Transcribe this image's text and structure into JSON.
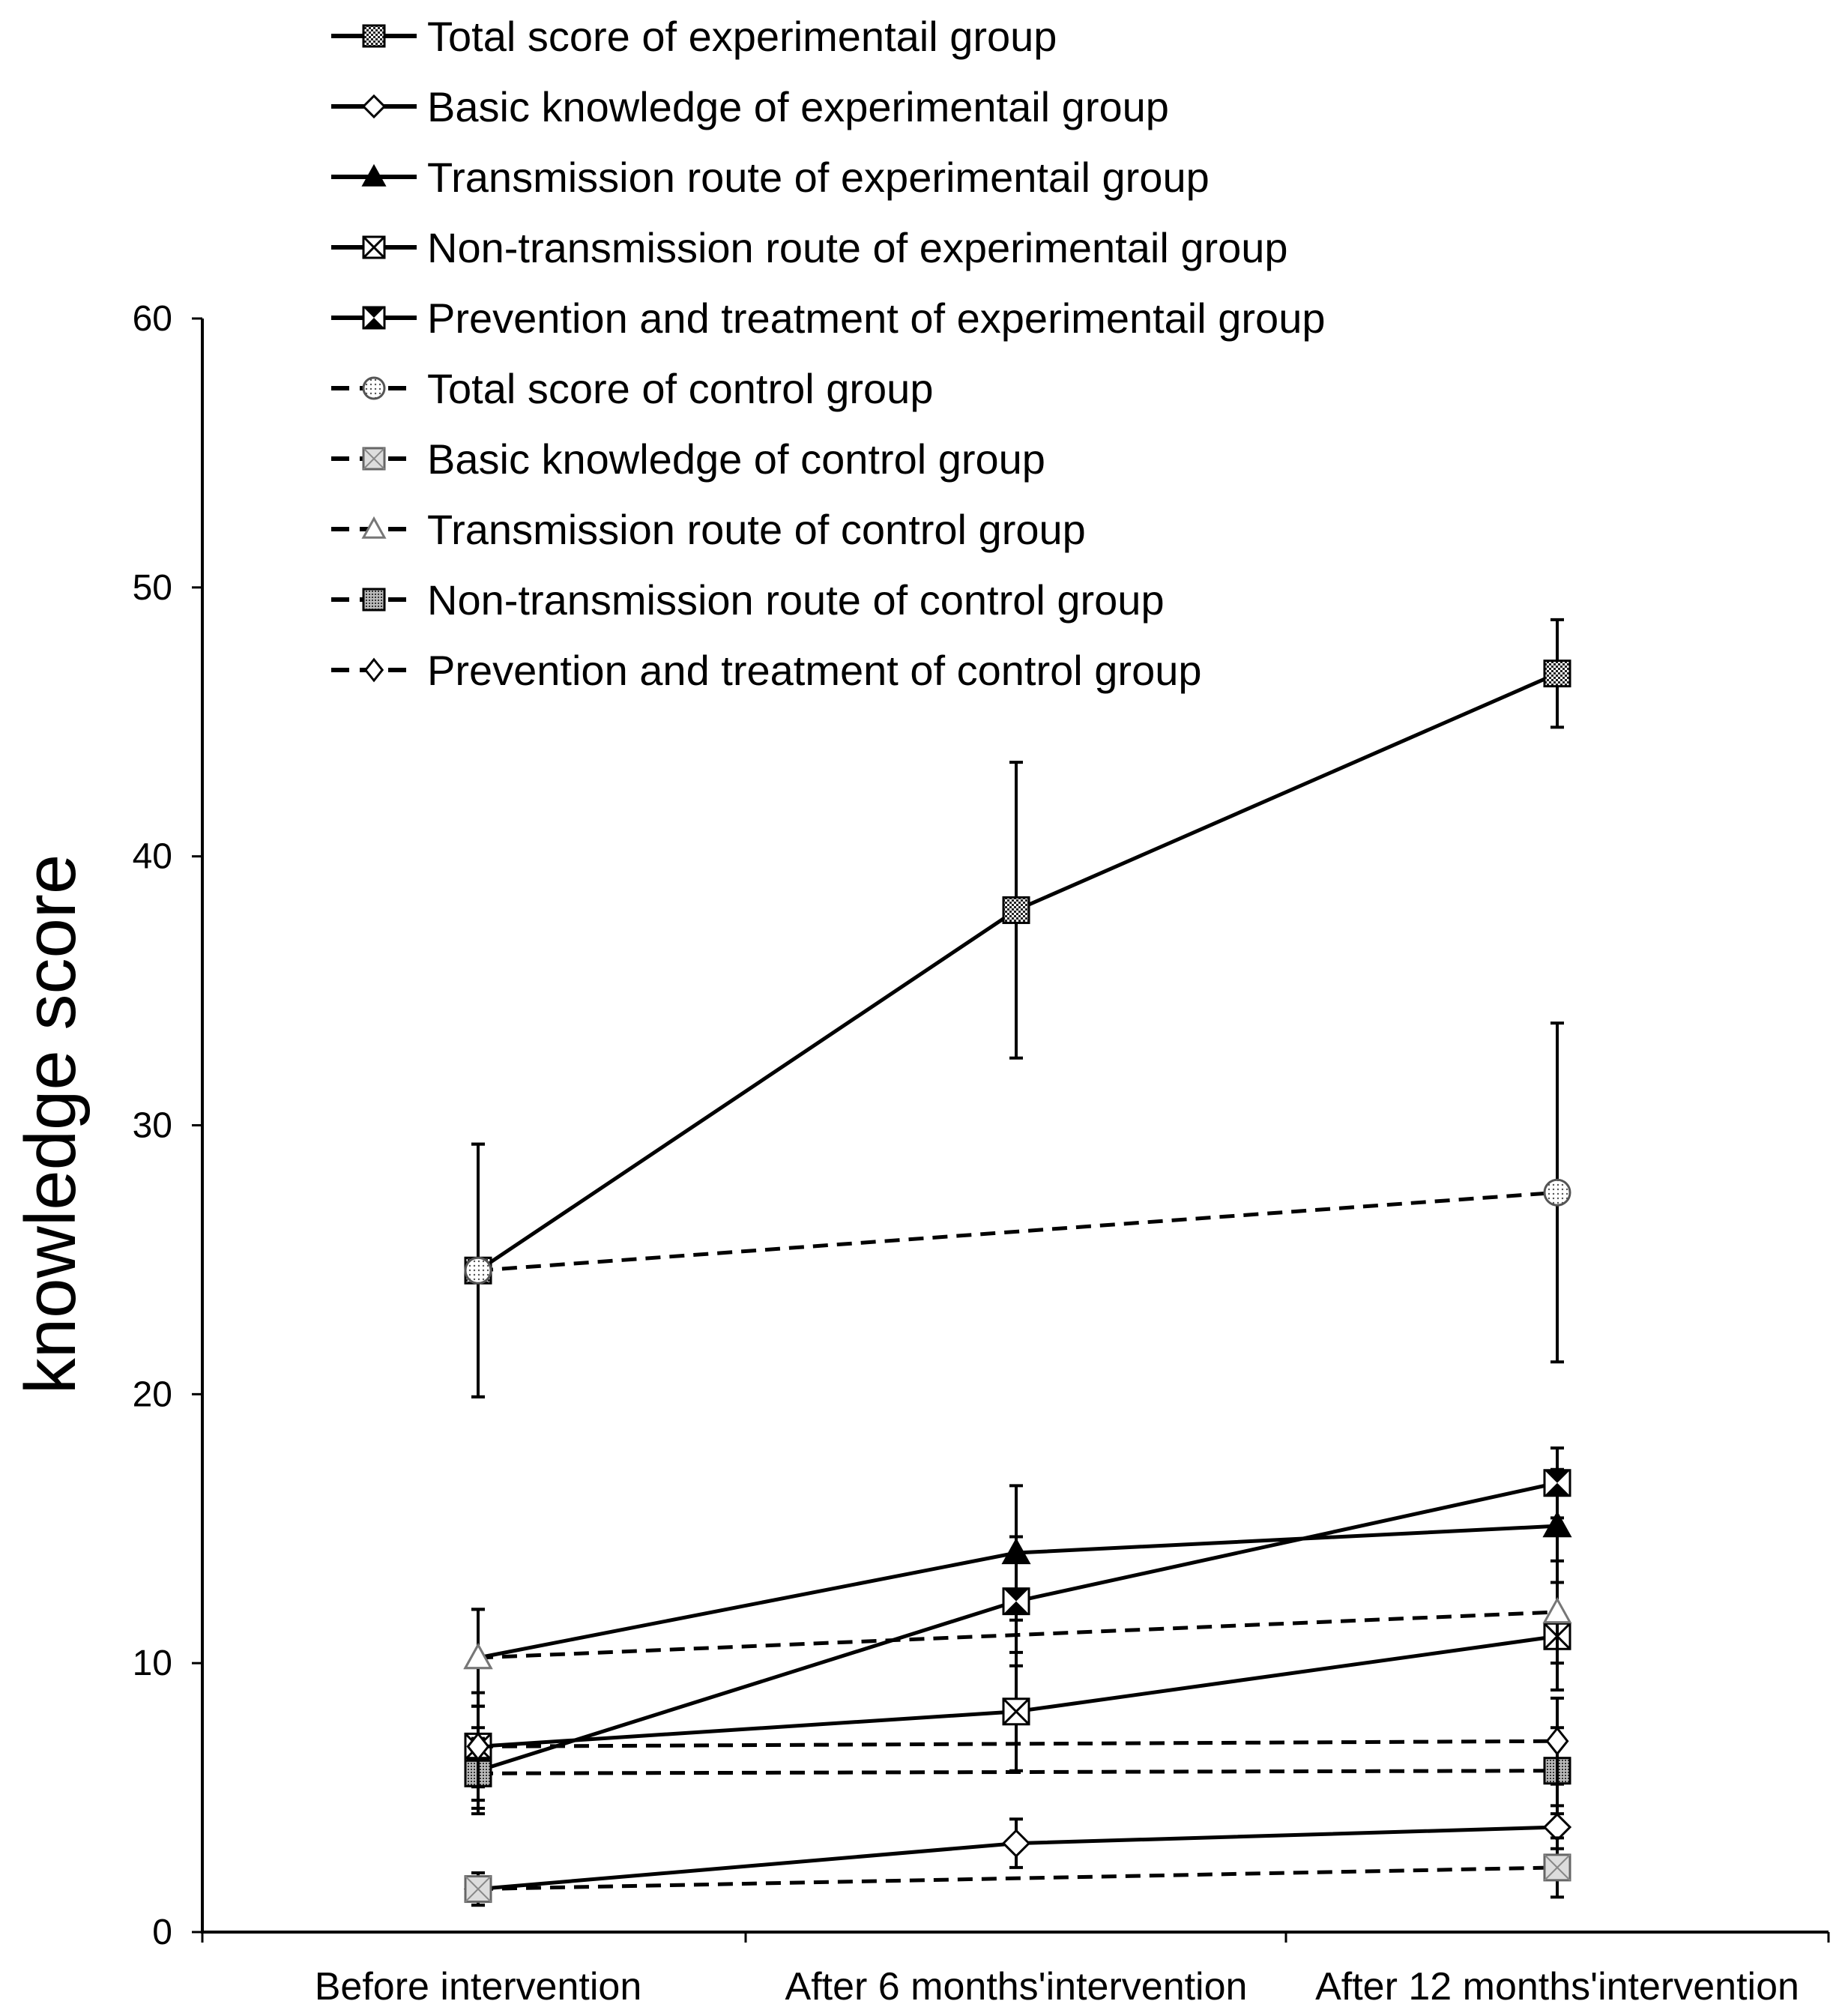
{
  "chart_data": {
    "type": "line",
    "title": "",
    "xlabel": "",
    "ylabel": "knowledge score",
    "ylim": [
      0,
      60
    ],
    "yticks": [
      0,
      10,
      20,
      30,
      40,
      50,
      60
    ],
    "categories": [
      "Before intervention",
      "After 6 months'intervention",
      "After 12 months'intervention"
    ],
    "legend_position": "top",
    "series": [
      {
        "name": "Total score of experimentail group",
        "style": "solid",
        "marker": "square-checker",
        "x": [
          0,
          1,
          2
        ],
        "values": [
          24.6,
          38.0,
          46.8
        ],
        "err": [
          4.7,
          5.5,
          2.0
        ]
      },
      {
        "name": "Basic knowledge of experimentail group",
        "style": "solid",
        "marker": "diamond",
        "x": [
          0,
          1,
          2
        ],
        "values": [
          1.6,
          3.3,
          3.9
        ],
        "err": [
          0.6,
          0.9,
          0.8
        ]
      },
      {
        "name": "Transmission route of experimentail group",
        "style": "solid",
        "marker": "triangle-filled",
        "x": [
          0,
          1,
          2
        ],
        "values": [
          10.2,
          14.1,
          15.1
        ],
        "err": [
          1.8,
          2.5,
          2.1
        ]
      },
      {
        "name": "Non-transmission route of experimentail group",
        "style": "solid",
        "marker": "square-x",
        "x": [
          0,
          1,
          2
        ],
        "values": [
          6.9,
          8.2,
          11.0
        ],
        "err": [
          2.0,
          2.2,
          2.0
        ]
      },
      {
        "name": "Prevention and treatment of experimentail group",
        "style": "solid",
        "marker": "hourglass",
        "x": [
          0,
          1,
          2
        ],
        "values": [
          6.0,
          12.3,
          16.7
        ],
        "err": [
          1.6,
          2.4,
          1.3
        ]
      },
      {
        "name": "Total score of control group",
        "style": "dashed",
        "marker": "circle-dots",
        "x": [
          0,
          2
        ],
        "values": [
          24.6,
          27.5
        ],
        "err": [
          4.7,
          6.3
        ]
      },
      {
        "name": "Basic knowledge of control group",
        "style": "dashed",
        "marker": "square-light",
        "x": [
          0,
          2
        ],
        "values": [
          1.6,
          2.4
        ],
        "err": [
          0.6,
          1.1
        ]
      },
      {
        "name": "Transmission route of control group",
        "style": "dashed",
        "marker": "triangle-open",
        "x": [
          0,
          2
        ],
        "values": [
          10.2,
          11.9
        ],
        "err": [
          1.8,
          1.9
        ]
      },
      {
        "name": "Non-transmission route of control group",
        "style": "dashed",
        "marker": "square-dense",
        "x": [
          0,
          2
        ],
        "values": [
          5.9,
          6.0
        ],
        "err": [
          1.3,
          1.6
        ]
      },
      {
        "name": "Prevention and treatment of control group",
        "style": "dashed",
        "marker": "diamond-open",
        "x": [
          0,
          2
        ],
        "values": [
          6.9,
          7.1
        ],
        "err": [
          1.5,
          1.6
        ]
      }
    ]
  }
}
